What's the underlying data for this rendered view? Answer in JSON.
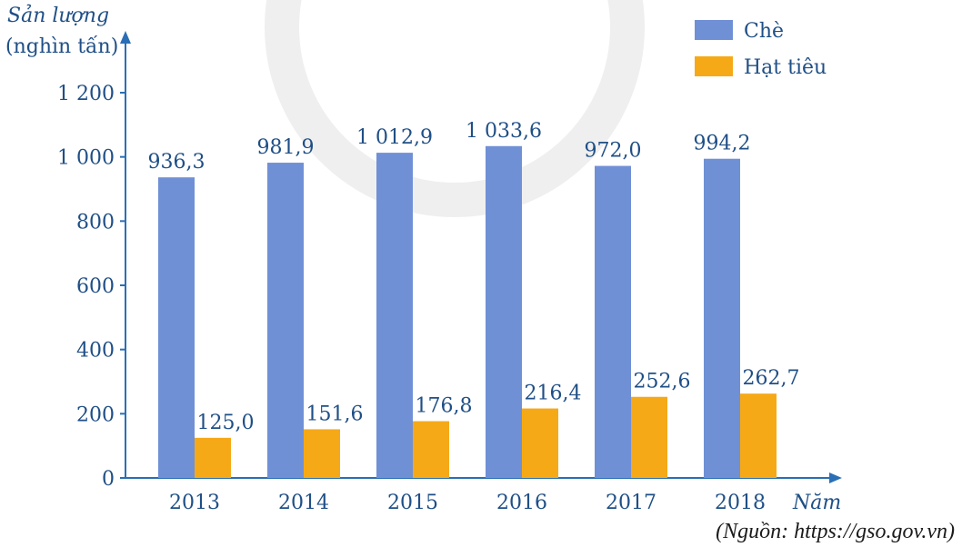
{
  "chart_data": {
    "type": "bar",
    "ylabel_line1": "Sản lượng",
    "ylabel_line2": "(nghìn tấn)",
    "xlabel": "Năm",
    "categories": [
      "2013",
      "2014",
      "2015",
      "2016",
      "2017",
      "2018"
    ],
    "yticks": [
      "0",
      "200",
      "400",
      "600",
      "800",
      "1 000",
      "1 200"
    ],
    "ylim": [
      0,
      1200
    ],
    "series": [
      {
        "name": "Chè",
        "color": "#7090d6",
        "values": [
          936.3,
          981.9,
          1012.9,
          1033.6,
          972.0,
          994.2
        ],
        "labels": [
          "936,3",
          "981,9",
          "1 012,9",
          "1 033,6",
          "972,0",
          "994,2"
        ]
      },
      {
        "name": "Hạt tiêu",
        "color": "#f6a917",
        "values": [
          125.0,
          151.6,
          176.8,
          216.4,
          252.6,
          262.7
        ],
        "labels": [
          "125,0",
          "151,6",
          "176,8",
          "216,4",
          "252,6",
          "262,7"
        ]
      }
    ],
    "legend": "top-right",
    "grid": false,
    "axis_color": "#2a6fb5"
  },
  "source": "(Nguồn: https://gso.gov.vn)"
}
